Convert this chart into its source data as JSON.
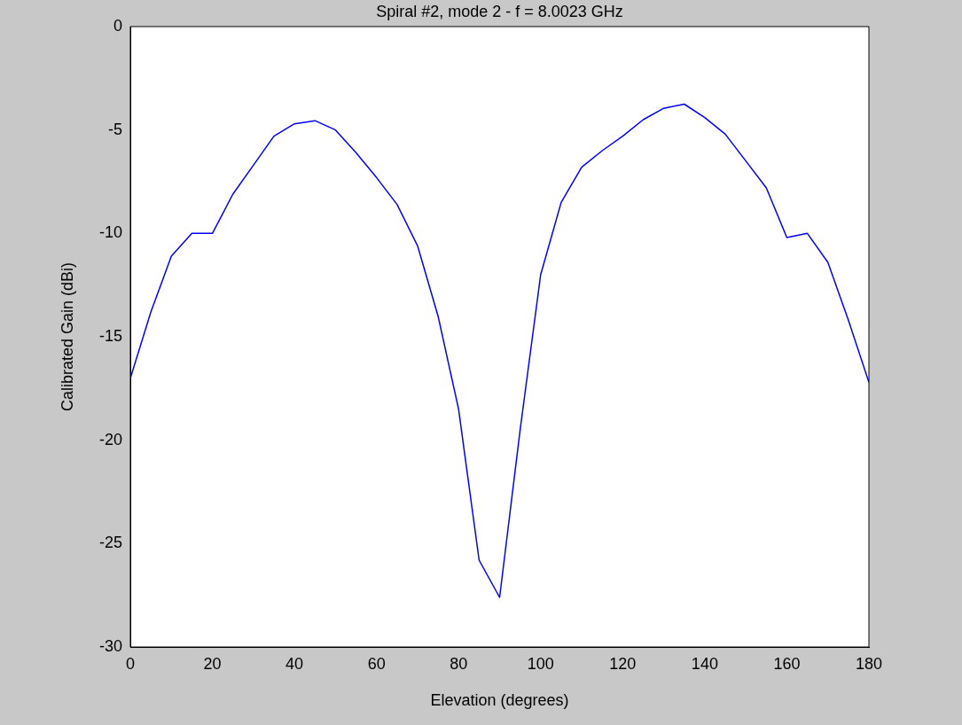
{
  "chart_data": {
    "type": "line",
    "title": "Spiral #2, mode 2 - f = 8.0023 GHz",
    "xlabel": "Elevation (degrees)",
    "ylabel": "Calibrated Gain (dBi)",
    "x": [
      0,
      5,
      10,
      15,
      20,
      25,
      30,
      35,
      40,
      45,
      50,
      55,
      60,
      65,
      70,
      75,
      80,
      85,
      90,
      95,
      100,
      105,
      110,
      115,
      120,
      125,
      130,
      135,
      140,
      145,
      150,
      155,
      160,
      165,
      170,
      175,
      180
    ],
    "series": [
      {
        "color": "#0000ff",
        "values": [
          -17,
          -13.8,
          -11.1,
          -10,
          -10,
          -8.1,
          -6.7,
          -5.3,
          -4.7,
          -4.55,
          -5,
          -6.1,
          -7.3,
          -8.6,
          -10.6,
          -14,
          -18.5,
          -25.8,
          -27.6,
          -19.5,
          -12,
          -8.5,
          -6.8,
          -6,
          -5.3,
          -4.5,
          -3.95,
          -3.75,
          -4.4,
          -5.2,
          -6.5,
          -7.8,
          -10.2,
          -10,
          -11.4,
          -14.2,
          -17.2
        ]
      }
    ],
    "xlim": [
      0,
      180
    ],
    "xticks": [
      0,
      20,
      40,
      60,
      80,
      100,
      120,
      140,
      160,
      180
    ],
    "ylim": [
      -30,
      0
    ],
    "yticks": [
      -30,
      -25,
      -20,
      -15,
      -10,
      -5,
      0
    ],
    "legend": false,
    "marker": "none",
    "line_style": "solid"
  }
}
